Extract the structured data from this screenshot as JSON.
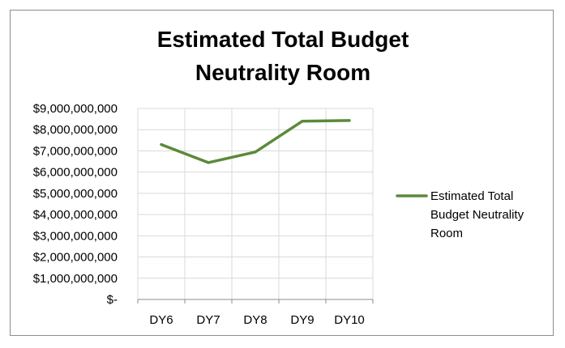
{
  "chart_data": {
    "type": "line",
    "title": "Estimated Total Budget Neutrality Room",
    "title_lines": [
      "Estimated Total Budget",
      "Neutrality Room"
    ],
    "categories": [
      "DY6",
      "DY7",
      "DY8",
      "DY9",
      "DY10"
    ],
    "series": [
      {
        "name": "Estimated Total Budget Neutrality Room",
        "name_lines": [
          "Estimated Total",
          "Budget Neutrality",
          "Room"
        ],
        "color": "#5b8a3a",
        "values": [
          7300000000,
          6450000000,
          6950000000,
          8400000000,
          8430000000
        ]
      }
    ],
    "ylim": [
      0,
      9000000000
    ],
    "y_tick_labels": [
      "$-",
      "$1,000,000,000",
      "$2,000,000,000",
      "$3,000,000,000",
      "$4,000,000,000",
      "$5,000,000,000",
      "$6,000,000,000",
      "$7,000,000,000",
      "$8,000,000,000",
      "$9,000,000,000"
    ],
    "xlabel": "",
    "ylabel": "",
    "grid": true,
    "legend_position": "right"
  }
}
